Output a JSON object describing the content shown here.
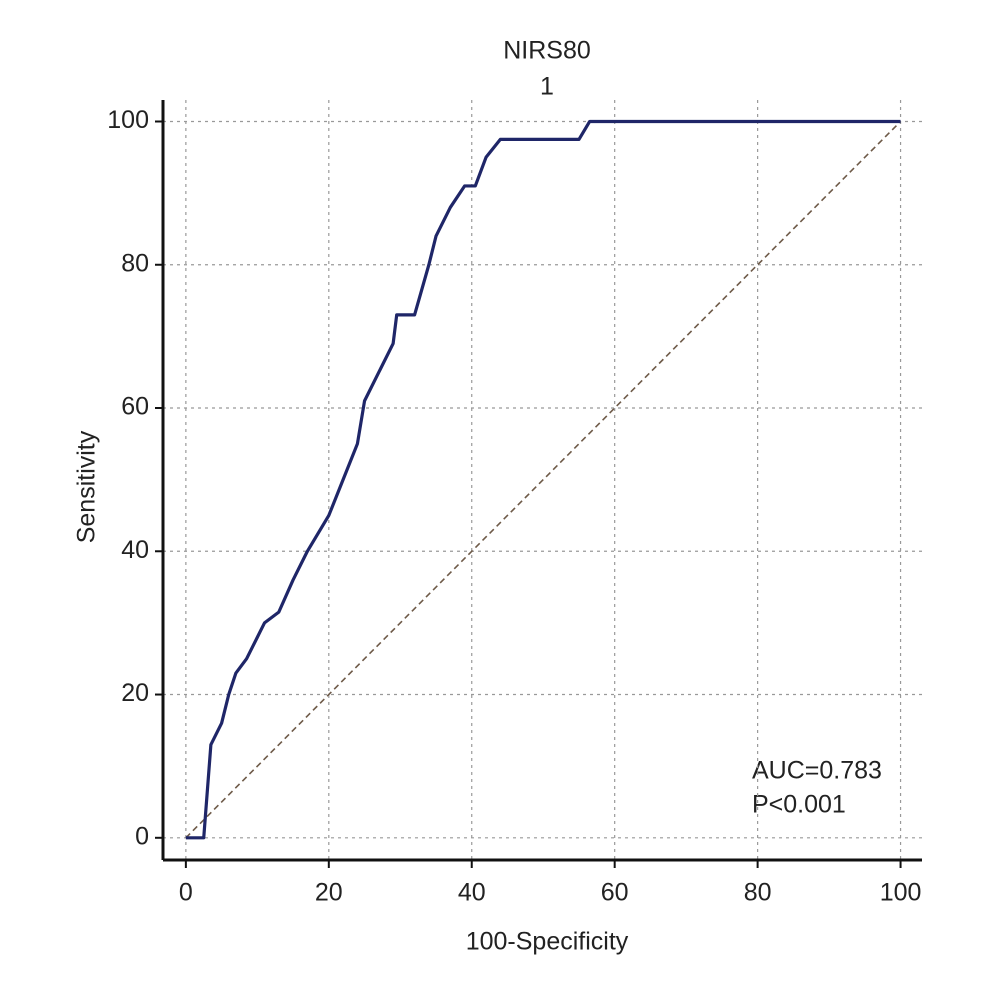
{
  "chart_data": {
    "type": "line",
    "title": "NIRS80",
    "subtitle": "1",
    "xlabel": "100-Specificity",
    "ylabel": "Sensitivity",
    "xlim": [
      -3.2,
      103
    ],
    "ylim": [
      -3.1,
      103
    ],
    "xticks": [
      0,
      20,
      40,
      60,
      80,
      100
    ],
    "yticks": [
      0,
      20,
      40,
      60,
      80,
      100
    ],
    "grid": true,
    "series": [
      {
        "color": "#1f2668",
        "x": [
          0,
          2.5,
          3.5,
          5,
          6,
          7,
          8.5,
          10,
          11,
          13,
          15,
          17,
          20,
          22,
          24,
          25,
          27,
          29,
          29.5,
          32,
          34,
          35,
          37,
          39,
          40.5,
          42,
          44,
          55,
          56.5,
          100
        ],
        "values": [
          0,
          0,
          13,
          16,
          20,
          23,
          25,
          28,
          30,
          31.5,
          36,
          40,
          45,
          50,
          55,
          61,
          65,
          69,
          73,
          73,
          80,
          84,
          88,
          91,
          91,
          95,
          97.5,
          97.5,
          100,
          100
        ]
      },
      {
        "color": "#6e5a48",
        "dashed": true,
        "x": [
          0,
          100
        ],
        "values": [
          0,
          100
        ]
      }
    ],
    "annotations": [
      "AUC=0.783",
      "P<0.001"
    ]
  }
}
